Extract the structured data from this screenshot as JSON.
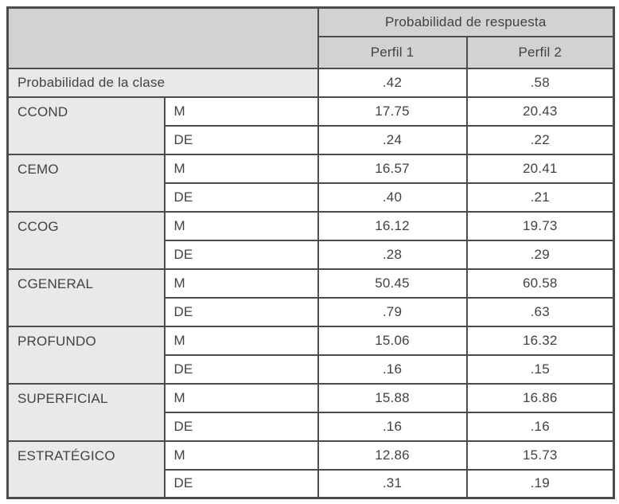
{
  "table": {
    "header": {
      "group_label": "Probabilidad de respuesta",
      "profile_columns": [
        "Perfil 1",
        "Perfil 2"
      ]
    },
    "stat_labels": {
      "mean": "M",
      "sd": "DE"
    },
    "class_probability": {
      "label": "Probabilidad de la clase",
      "values": [
        ".42",
        ".58"
      ]
    },
    "rows": [
      {
        "variable": "CCOND",
        "mean": [
          "17.75",
          "20.43"
        ],
        "sd": [
          ".24",
          ".22"
        ]
      },
      {
        "variable": "CEMO",
        "mean": [
          "16.57",
          "20.41"
        ],
        "sd": [
          ".40",
          ".21"
        ]
      },
      {
        "variable": "CCOG",
        "mean": [
          "16.12",
          "19.73"
        ],
        "sd": [
          ".28",
          ".29"
        ]
      },
      {
        "variable": "CGENERAL",
        "mean": [
          "50.45",
          "60.58"
        ],
        "sd": [
          ".79",
          ".63"
        ]
      },
      {
        "variable": "PROFUNDO",
        "mean": [
          "15.06",
          "16.32"
        ],
        "sd": [
          ".16",
          ".15"
        ]
      },
      {
        "variable": "SUPERFICIAL",
        "mean": [
          "15.88",
          "16.86"
        ],
        "sd": [
          ".16",
          ".16"
        ]
      },
      {
        "variable": "ESTRATÉGICO",
        "mean": [
          "12.86",
          "15.73"
        ],
        "sd": [
          ".31",
          ".19"
        ]
      }
    ]
  },
  "colors": {
    "header_bg": "#d2d2d2",
    "category_bg": "#e9e9e9",
    "value_bg": "#ffffff",
    "border": "#4c4c4c",
    "text": "#424242"
  }
}
